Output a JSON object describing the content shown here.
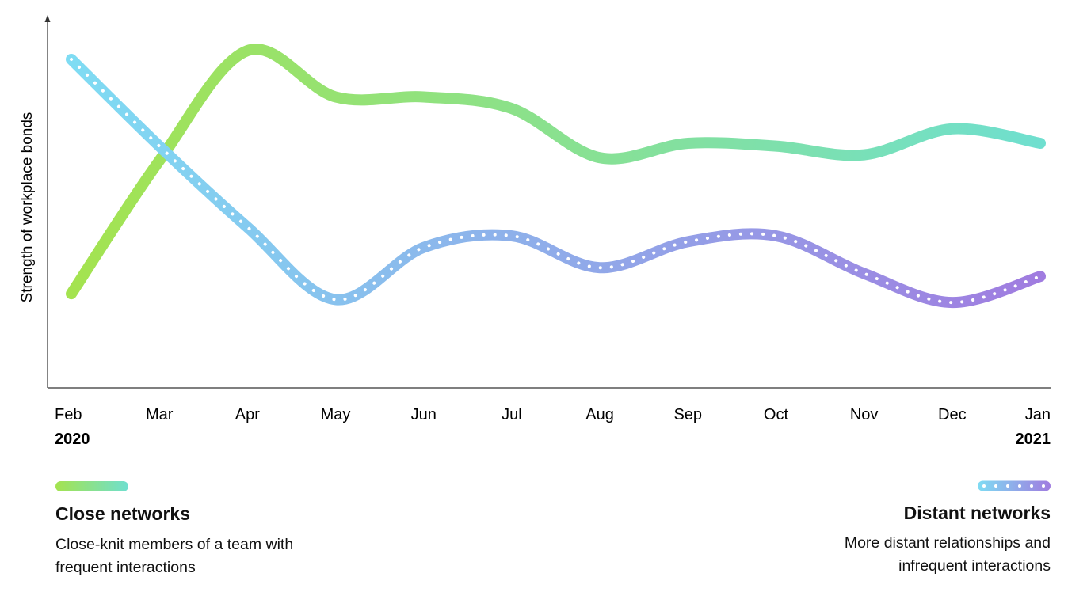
{
  "chart_data": {
    "type": "line",
    "ylabel": "Strength of workplace bonds",
    "categories": [
      "Feb",
      "Mar",
      "Apr",
      "May",
      "Jun",
      "Jul",
      "Aug",
      "Sep",
      "Oct",
      "Nov",
      "Dec",
      "Jan"
    ],
    "year_start": "2020",
    "year_end": "2021",
    "ylim": [
      0,
      100
    ],
    "grid": false,
    "series": [
      {
        "name": "Close networks",
        "description": "Close-knit members of a team with frequent interactions",
        "style": "solid",
        "colors": [
          "#a4e34f",
          "#6fdfcf"
        ],
        "values": [
          15,
          61,
          99,
          83,
          83,
          79,
          62,
          67,
          66,
          63,
          72,
          67
        ]
      },
      {
        "name": "Distant networks",
        "description": "More distant relationships and infrequent interactions",
        "style": "dotted",
        "colors": [
          "#7fdcf3",
          "#a07ce0"
        ],
        "values": [
          96,
          66,
          38,
          13,
          31,
          35,
          24,
          33,
          35,
          22,
          12,
          21
        ]
      }
    ],
    "legend_placement": "bottom"
  }
}
